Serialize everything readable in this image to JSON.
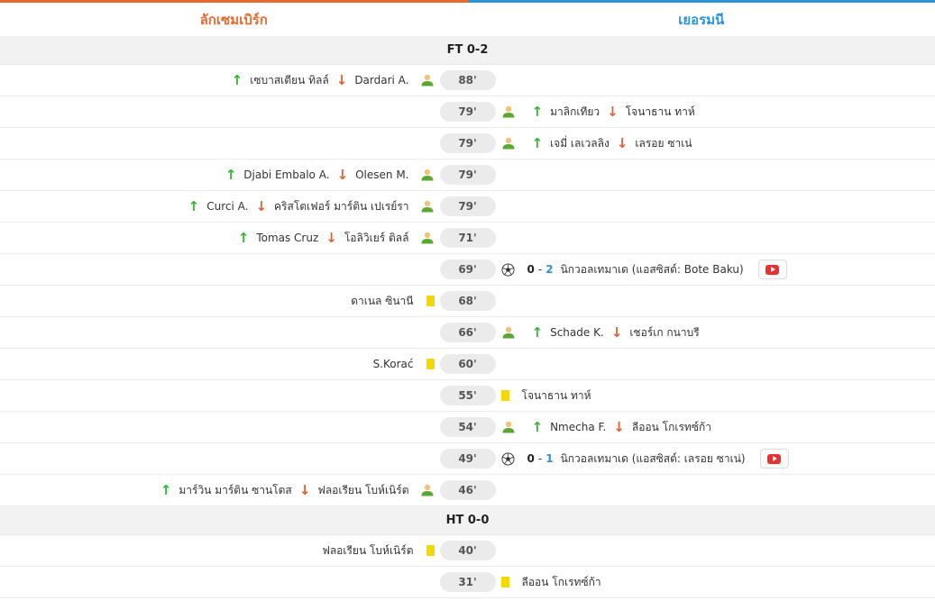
{
  "teams": {
    "home": "ลักเซมเบิร์ก",
    "away": "เยอรมนี",
    "home_color": "#e8692d",
    "away_color": "#2e93d9"
  },
  "periods": {
    "ft": "FT 0-2",
    "ht": "HT 0-0"
  },
  "second_half": [
    {
      "minute": "88'",
      "side": "home",
      "type": "sub",
      "in": "เซบาสเตียน ทิลล์",
      "out": "Dardari A."
    },
    {
      "minute": "79'",
      "side": "away",
      "type": "sub",
      "in": "มาลิกเทียว",
      "out": "โจนาธาน ทาห์"
    },
    {
      "minute": "79'",
      "side": "away",
      "type": "sub",
      "in": "เจมี่ เลเวลลิง",
      "out": "เลรอย ซาเน่"
    },
    {
      "minute": "79'",
      "side": "home",
      "type": "sub",
      "in": "Djabi Embalo A.",
      "out": "Olesen M."
    },
    {
      "minute": "79'",
      "side": "home",
      "type": "sub",
      "in": "Curci A.",
      "out": "คริสโตเฟอร์ มาร์ติน เปเรย์รา"
    },
    {
      "minute": "71'",
      "side": "home",
      "type": "sub",
      "in": "Tomas Cruz",
      "out": "โอลิวิเยร์ ติลล์"
    },
    {
      "minute": "69'",
      "side": "away",
      "type": "goal",
      "score_home": "0",
      "sep": "-",
      "score_away": "2",
      "text": "นิกวอลเทมาเด (แอสซิสต์: Bote Baku)"
    },
    {
      "minute": "68'",
      "side": "home",
      "type": "yellow",
      "name": "ดาเนล ซินานี"
    },
    {
      "minute": "66'",
      "side": "away",
      "type": "sub",
      "in": "Schade K.",
      "out": "เชอร์เก กนาบรี"
    },
    {
      "minute": "60'",
      "side": "home",
      "type": "yellow",
      "name": "S.Korać"
    },
    {
      "minute": "55'",
      "side": "away",
      "type": "yellow",
      "name": "โจนาธาน ทาห์"
    },
    {
      "minute": "54'",
      "side": "away",
      "type": "sub",
      "in": "Nmecha F.",
      "out": "ลีออน โกเรทซ์ก้า"
    },
    {
      "minute": "49'",
      "side": "away",
      "type": "goal",
      "score_home": "0",
      "sep": "-",
      "score_away": "1",
      "text": "นิกวอลเทมาเด (แอสซิสต์: เลรอย ซาเน่)"
    },
    {
      "minute": "46'",
      "side": "home",
      "type": "sub",
      "in": "มาร์วิน มาร์ติน ซานโตส",
      "out": "ฟลอเรียน โบห์เนิร์ต"
    }
  ],
  "first_half": [
    {
      "minute": "40'",
      "side": "home",
      "type": "yellow",
      "name": "ฟลอเรียน โบห์เนิร์ต"
    },
    {
      "minute": "31'",
      "side": "away",
      "type": "yellow",
      "name": "ลีออน โกเรทซ์ก้า"
    }
  ],
  "icons": {
    "sub": "substitution-person-icon",
    "in": "arrow-up-icon",
    "out": "arrow-down-icon",
    "yellow": "yellow-card-icon",
    "goal": "soccer-ball-icon",
    "video": "video-play-icon"
  }
}
